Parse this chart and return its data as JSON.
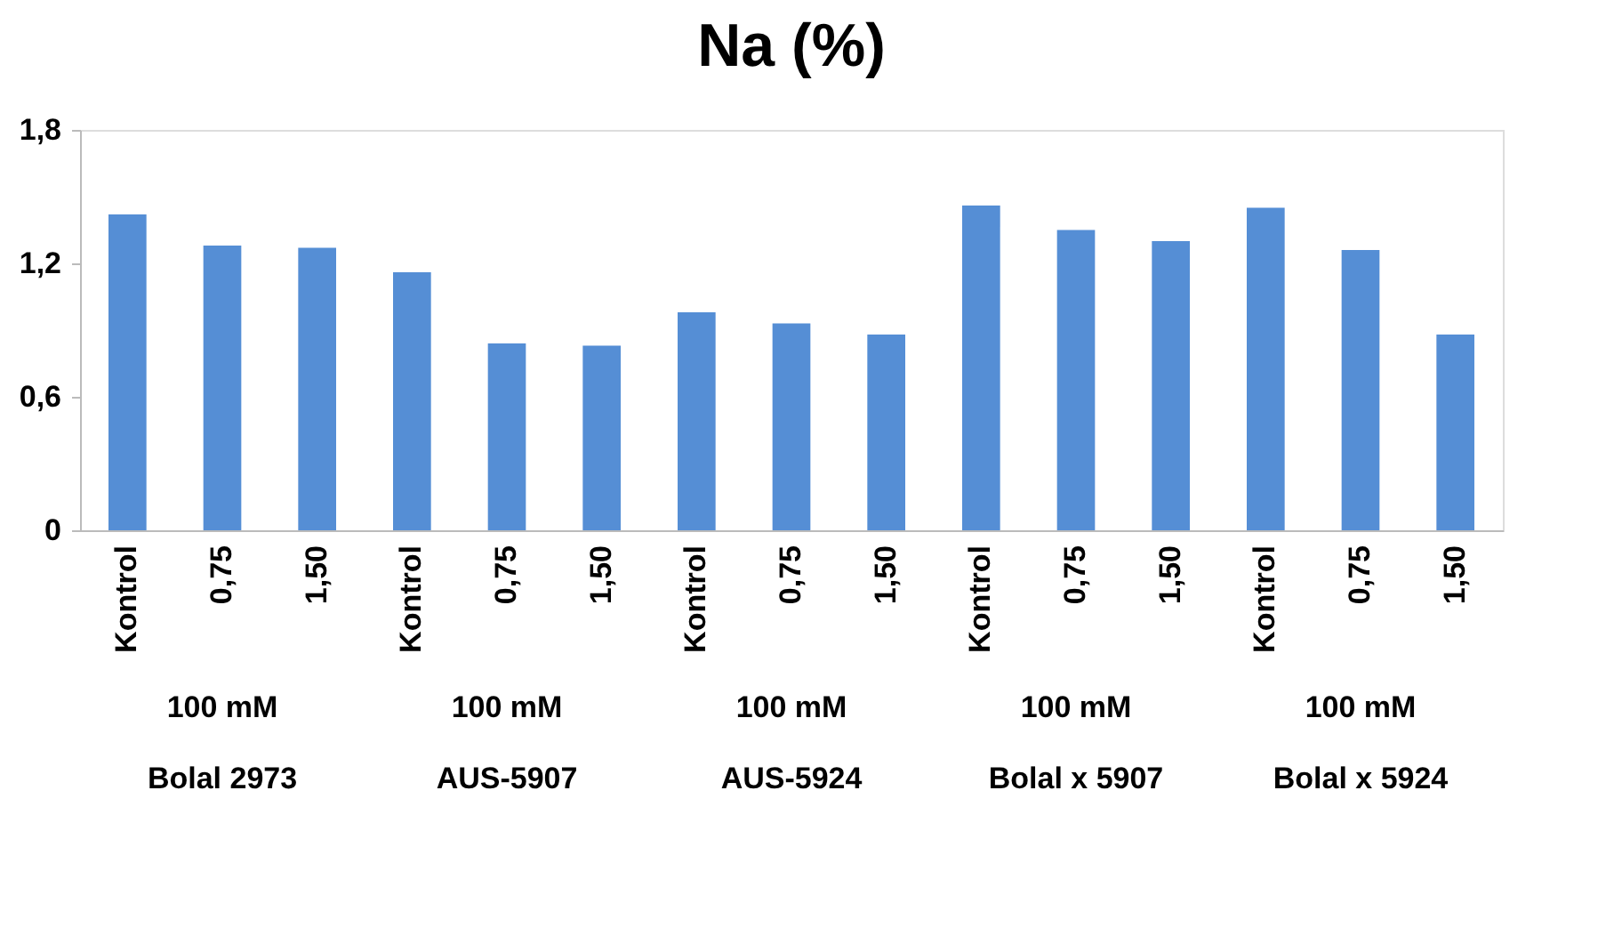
{
  "chart_data": {
    "type": "bar",
    "title": "Na (%)",
    "categories": [
      "Kontrol",
      "0,75",
      "1,50",
      "Kontrol",
      "0,75",
      "1,50",
      "Kontrol",
      "0,75",
      "1,50",
      "Kontrol",
      "0,75",
      "1,50",
      "Kontrol",
      "0,75",
      "1,50"
    ],
    "values": [
      1.42,
      1.28,
      1.27,
      1.16,
      0.84,
      0.83,
      0.98,
      0.93,
      0.88,
      1.46,
      1.35,
      1.3,
      1.45,
      1.26,
      0.88
    ],
    "color": "#558ed5",
    "ylim": [
      0,
      1.8
    ],
    "yticks": [
      0,
      {
        "value": 0.6,
        "label": "0,6"
      },
      {
        "value": 1.2,
        "label": "1,2"
      },
      {
        "value": 1.8,
        "label": "1,8"
      }
    ],
    "annotations": [
      "100 mM",
      "100 mM",
      "100 mM",
      "100 mM",
      "100 mM",
      "Bolal 2973",
      "AUS-5907",
      "AUS-5924",
      "Bolal x 5907",
      "Bolal x 5924"
    ],
    "grid": false
  }
}
